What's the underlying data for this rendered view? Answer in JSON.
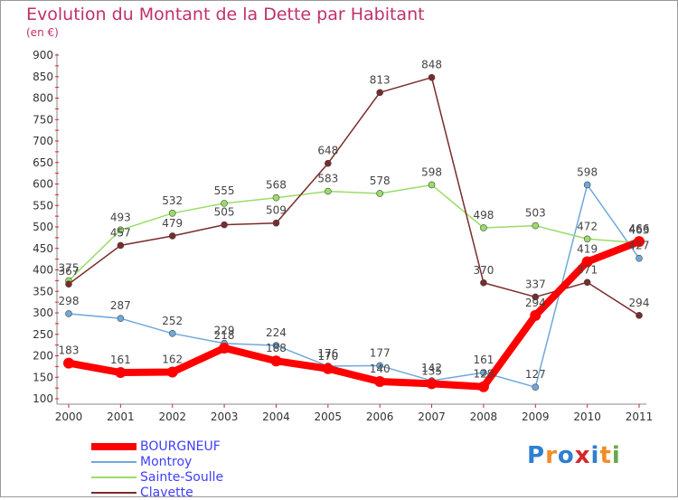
{
  "chart_data": {
    "type": "line",
    "title": "Evolution du Montant de la Dette par Habitant",
    "subtitle": "(en €)",
    "x": [
      "2000",
      "2001",
      "2002",
      "2003",
      "2004",
      "2005",
      "2006",
      "2007",
      "2008",
      "2009",
      "2010",
      "2011"
    ],
    "ylim": [
      100,
      900
    ],
    "yticks": [
      "100",
      "150",
      "200",
      "250",
      "300",
      "350",
      "400",
      "450",
      "500",
      "550",
      "600",
      "650",
      "700",
      "750",
      "800",
      "850",
      "900"
    ],
    "grid": false,
    "legend_position": "bottom-left",
    "series": [
      {
        "name": "BOURGNEUF",
        "color": "#ff0000",
        "width": "thick",
        "values": [
          183,
          161,
          162,
          218,
          188,
          170,
          140,
          135,
          128,
          294,
          419,
          466
        ]
      },
      {
        "name": "Montroy",
        "color": "#6fa8dc",
        "width": "thin",
        "values": [
          298,
          287,
          252,
          229,
          224,
          176,
          177,
          142,
          161,
          127,
          598,
          427
        ]
      },
      {
        "name": "Sainte-Soulle",
        "color": "#99dd66",
        "width": "thin",
        "values": [
          375,
          493,
          532,
          555,
          568,
          583,
          578,
          598,
          498,
          503,
          472,
          463
        ]
      },
      {
        "name": "Clavette",
        "color": "#7a2b2b",
        "width": "thin",
        "values": [
          367,
          457,
          479,
          505,
          509,
          648,
          813,
          848,
          370,
          337,
          371,
          294
        ]
      }
    ]
  },
  "logo": {
    "letters": [
      "P",
      "r",
      "o",
      "x",
      "i",
      "t",
      "i"
    ],
    "colors": [
      "#2f7fd0",
      "#f28c28",
      "#2f7fd0",
      "#d62828",
      "#2f7fd0",
      "#f28c28",
      "#6aa84f"
    ]
  }
}
